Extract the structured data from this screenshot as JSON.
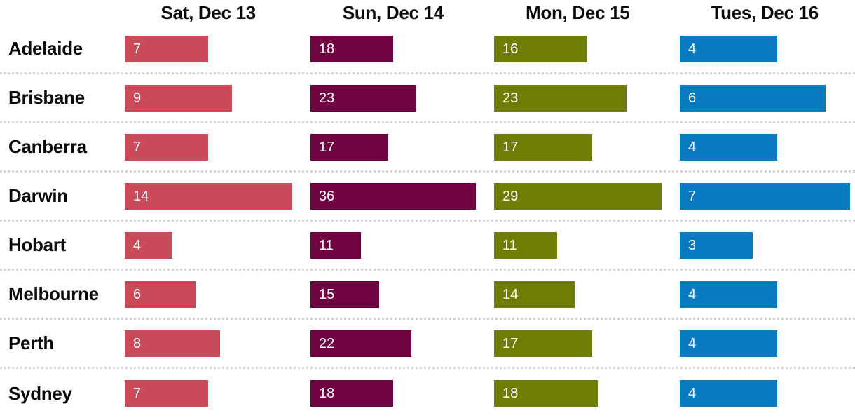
{
  "chart_data": {
    "type": "bar",
    "orientation": "horizontal",
    "title": "",
    "grid": false,
    "legend": "none",
    "layout_note": "Rows are cities, columns are days; each column's bars are scaled relative to that column's maximum value (Darwin row); dotted separators between rows",
    "categories": [
      "Adelaide",
      "Brisbane",
      "Canberra",
      "Darwin",
      "Hobart",
      "Melbourne",
      "Perth",
      "Sydney"
    ],
    "columns": [
      {
        "label": "Sat, Dec 13",
        "color": "#c94b5a",
        "max": 14
      },
      {
        "label": "Sun, Dec 14",
        "color": "#6e0340",
        "max": 36
      },
      {
        "label": "Mon, Dec 15",
        "color": "#6f7d04",
        "max": 29
      },
      {
        "label": "Tues, Dec 16",
        "color": "#0979c0",
        "max": 7
      }
    ],
    "series": [
      {
        "name": "Sat, Dec 13",
        "values": [
          7,
          9,
          7,
          14,
          4,
          6,
          8,
          7
        ]
      },
      {
        "name": "Sun, Dec 14",
        "values": [
          18,
          23,
          17,
          36,
          11,
          15,
          22,
          18
        ]
      },
      {
        "name": "Mon, Dec 15",
        "values": [
          16,
          23,
          17,
          29,
          11,
          14,
          17,
          18
        ]
      },
      {
        "name": "Tues, Dec 16",
        "values": [
          4,
          6,
          4,
          7,
          3,
          4,
          4,
          4
        ]
      }
    ],
    "colors": {
      "text": "#0b0b0b",
      "bar_label_text": "#ffffff",
      "row_divider": "#d4d4d4",
      "background": "#ffffff"
    }
  }
}
